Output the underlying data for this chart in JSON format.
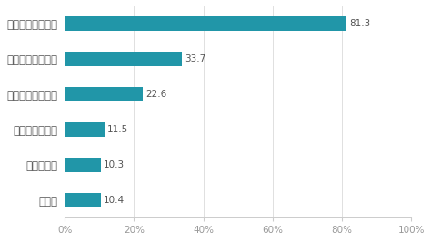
{
  "categories": [
    "効率化・業務改善",
    "顧客サービス向上",
    "事業の全体最適化",
    "新規事業・経営",
    "事業継続性",
    "その他"
  ],
  "values": [
    81.3,
    33.7,
    22.6,
    11.5,
    10.3,
    10.4
  ],
  "bar_color": "#2196A8",
  "label_color": "#555555",
  "axis_label_color": "#999999",
  "background_color": "#ffffff",
  "xlim": [
    0,
    100
  ],
  "xticks": [
    0,
    20,
    40,
    60,
    80,
    100
  ],
  "xtick_labels": [
    "0%",
    "20%",
    "40%",
    "60%",
    "80%",
    "100%"
  ],
  "bar_height": 0.42,
  "value_fontsize": 7.5,
  "label_fontsize": 8.5,
  "tick_fontsize": 7.5
}
